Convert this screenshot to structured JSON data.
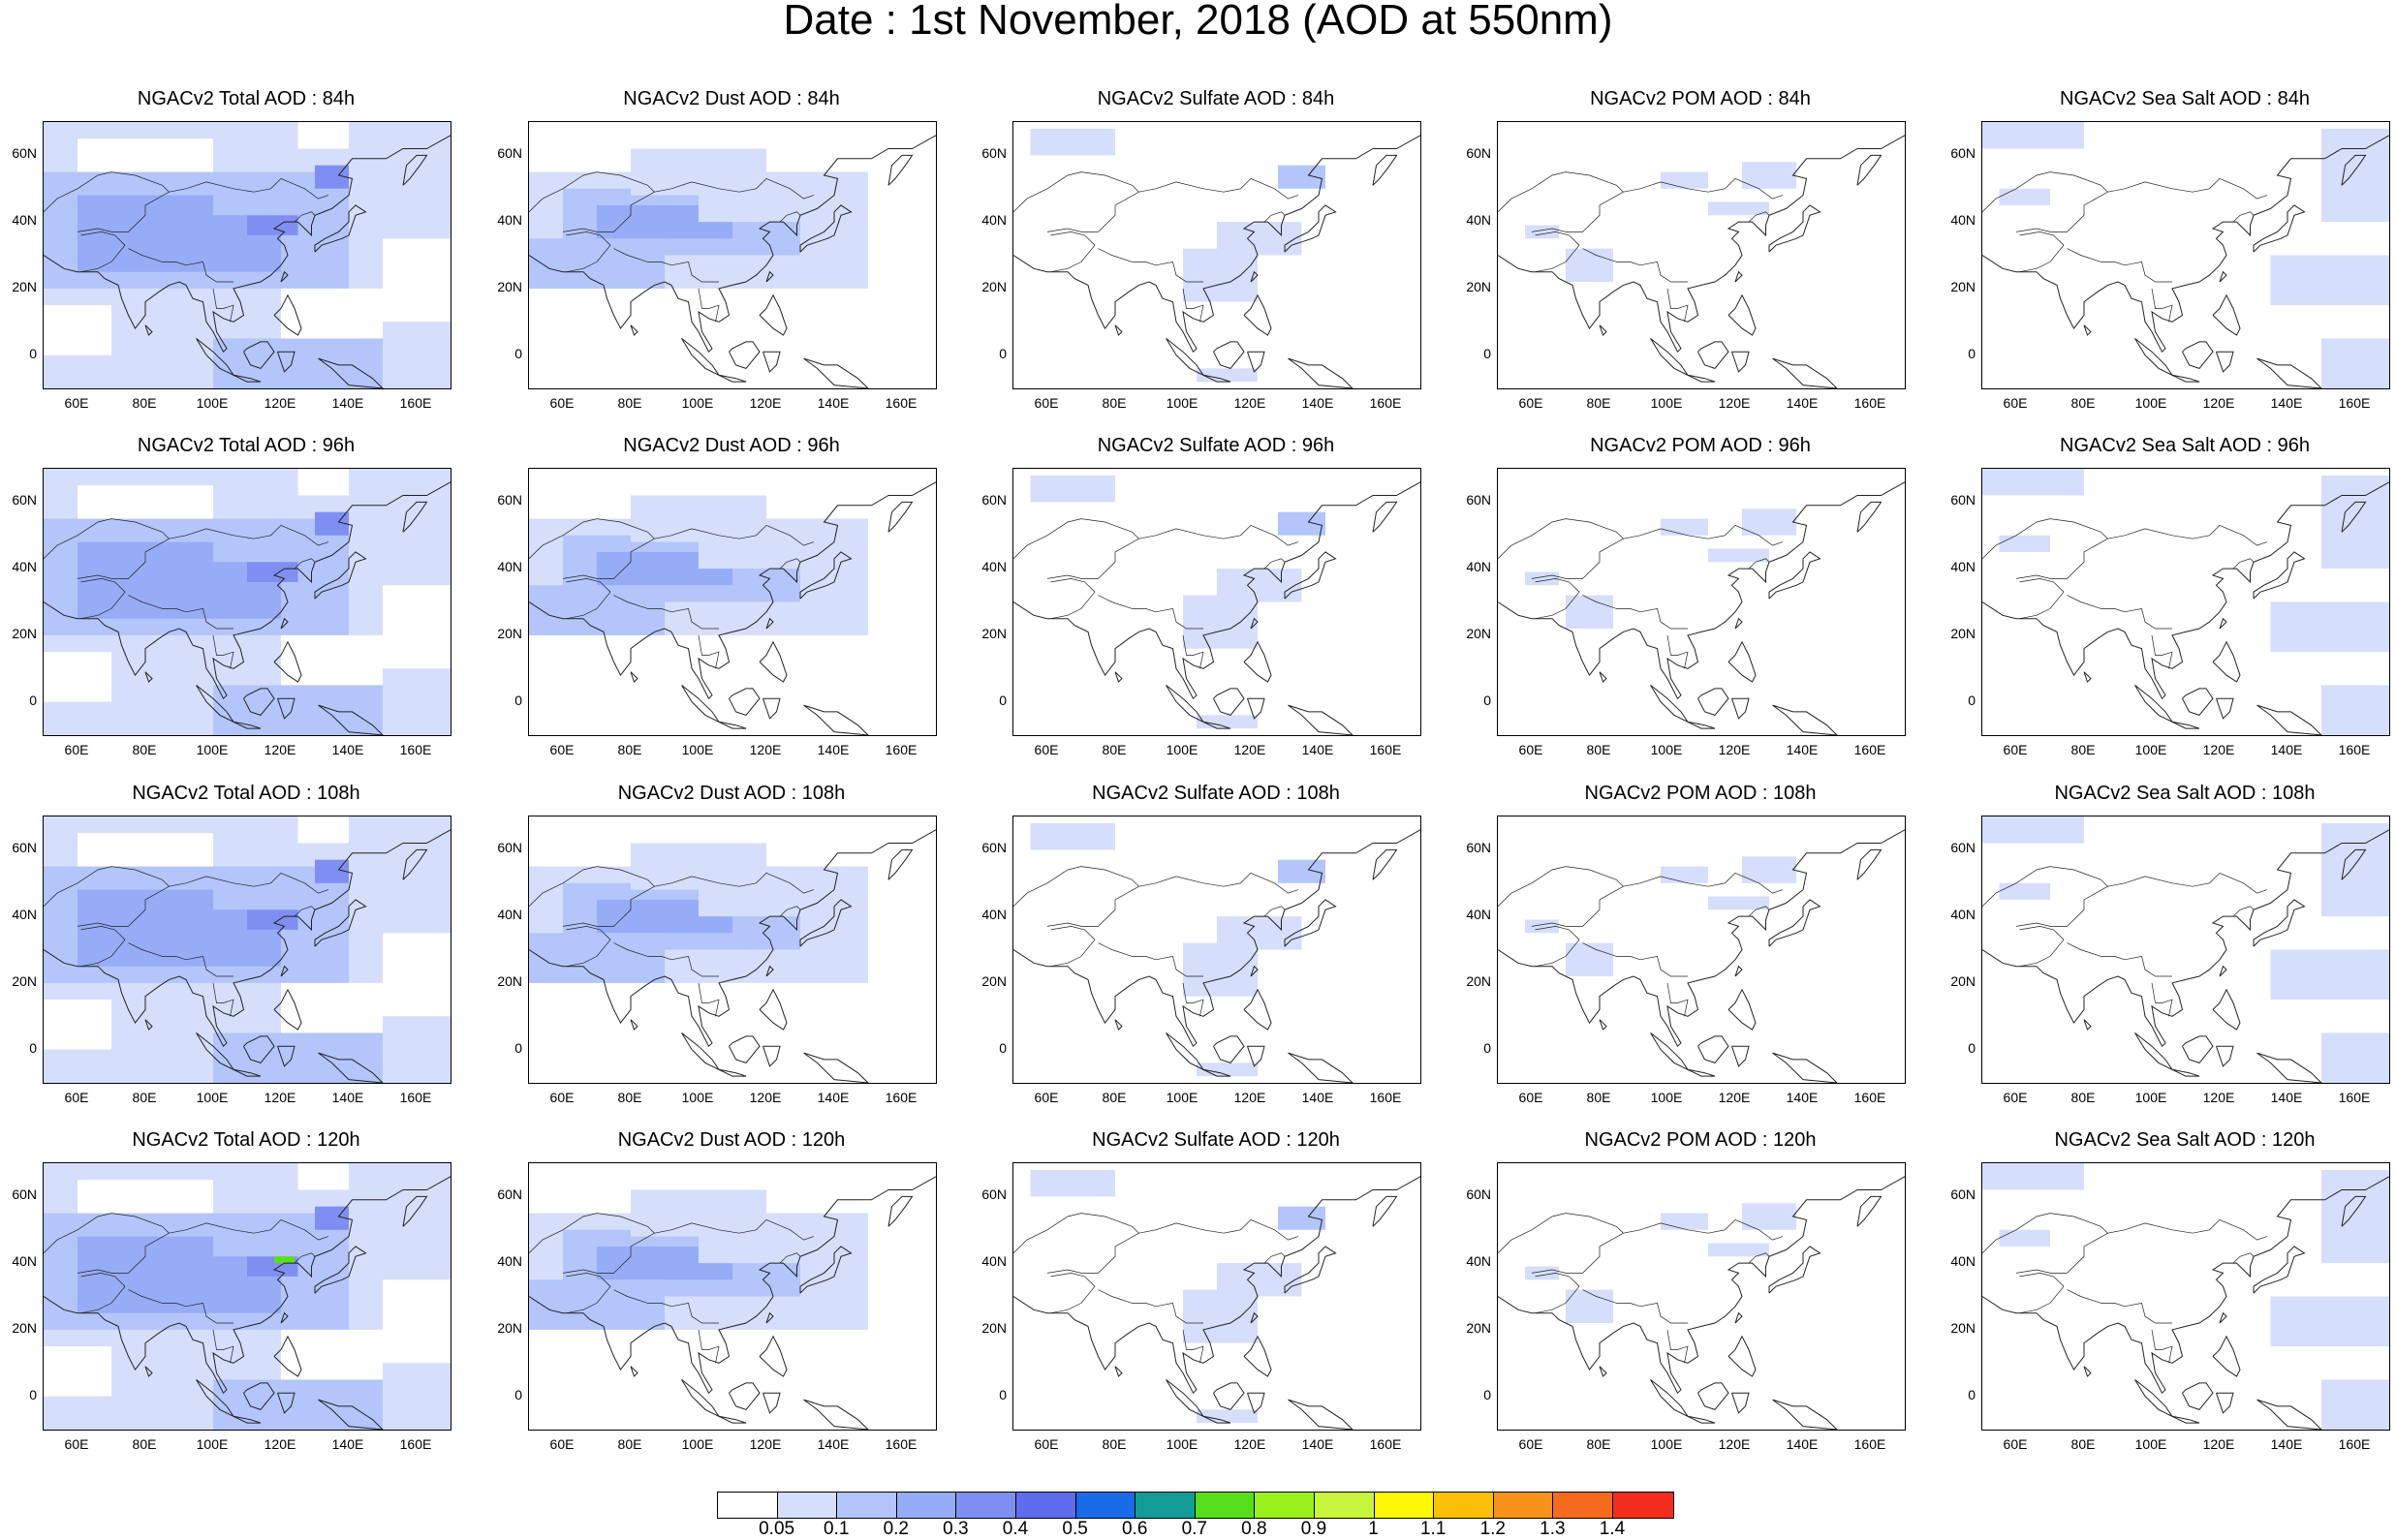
{
  "title": "Date : 1st November, 2018 (AOD at 550nm)",
  "map": {
    "projection": "cylindrical equidistant",
    "lon_range": [
      50,
      170
    ],
    "lat_range": [
      -10,
      70
    ],
    "lat_ticks": [
      "60N",
      "40N",
      "20N",
      "0"
    ],
    "lon_ticks": [
      "60E",
      "80E",
      "100E",
      "120E",
      "140E",
      "160E"
    ]
  },
  "panels": [
    {
      "title": "NGACv2 Total AOD : 84h",
      "species": "total",
      "hour": "84h"
    },
    {
      "title": "NGACv2 Dust AOD : 84h",
      "species": "dust",
      "hour": "84h"
    },
    {
      "title": "NGACv2 Sulfate AOD : 84h",
      "species": "sulfate",
      "hour": "84h"
    },
    {
      "title": "NGACv2 POM AOD : 84h",
      "species": "pom",
      "hour": "84h"
    },
    {
      "title": "NGACv2 Sea Salt AOD : 84h",
      "species": "seasalt",
      "hour": "84h"
    },
    {
      "title": "NGACv2 Total AOD : 96h",
      "species": "total",
      "hour": "96h"
    },
    {
      "title": "NGACv2 Dust AOD : 96h",
      "species": "dust",
      "hour": "96h"
    },
    {
      "title": "NGACv2 Sulfate AOD : 96h",
      "species": "sulfate",
      "hour": "96h"
    },
    {
      "title": "NGACv2 POM AOD : 96h",
      "species": "pom",
      "hour": "96h"
    },
    {
      "title": "NGACv2 Sea Salt AOD : 96h",
      "species": "seasalt",
      "hour": "96h"
    },
    {
      "title": "NGACv2 Total AOD : 108h",
      "species": "total",
      "hour": "108h"
    },
    {
      "title": "NGACv2 Dust AOD : 108h",
      "species": "dust",
      "hour": "108h"
    },
    {
      "title": "NGACv2 Sulfate AOD : 108h",
      "species": "sulfate",
      "hour": "108h"
    },
    {
      "title": "NGACv2 POM AOD : 108h",
      "species": "pom",
      "hour": "108h"
    },
    {
      "title": "NGACv2 Sea Salt AOD : 108h",
      "species": "seasalt",
      "hour": "108h"
    },
    {
      "title": "NGACv2 Total AOD : 120h",
      "species": "total",
      "hour": "120h"
    },
    {
      "title": "NGACv2 Dust AOD : 120h",
      "species": "dust",
      "hour": "120h"
    },
    {
      "title": "NGACv2 Sulfate AOD : 120h",
      "species": "sulfate",
      "hour": "120h"
    },
    {
      "title": "NGACv2 POM AOD : 120h",
      "species": "pom",
      "hour": "120h"
    },
    {
      "title": "NGACv2 Sea Salt  AOD : 120h",
      "species": "seasalt",
      "hour": "120h"
    }
  ],
  "colorbar": {
    "labels": [
      "0.05",
      "0.1",
      "0.2",
      "0.3",
      "0.4",
      "0.5",
      "0.6",
      "0.7",
      "0.8",
      "0.9",
      "1",
      "1.1",
      "1.2",
      "1.3",
      "1.4"
    ],
    "colors": [
      "#ffffff",
      "#d5defb",
      "#b3c5fa",
      "#96acf7",
      "#7f8ff1",
      "#5f6cee",
      "#1a6bea",
      "#139c96",
      "#58df1b",
      "#9af01a",
      "#c7f63c",
      "#fcf804",
      "#fbc006",
      "#f9921a",
      "#f56a1d",
      "#f22d1d"
    ]
  }
}
